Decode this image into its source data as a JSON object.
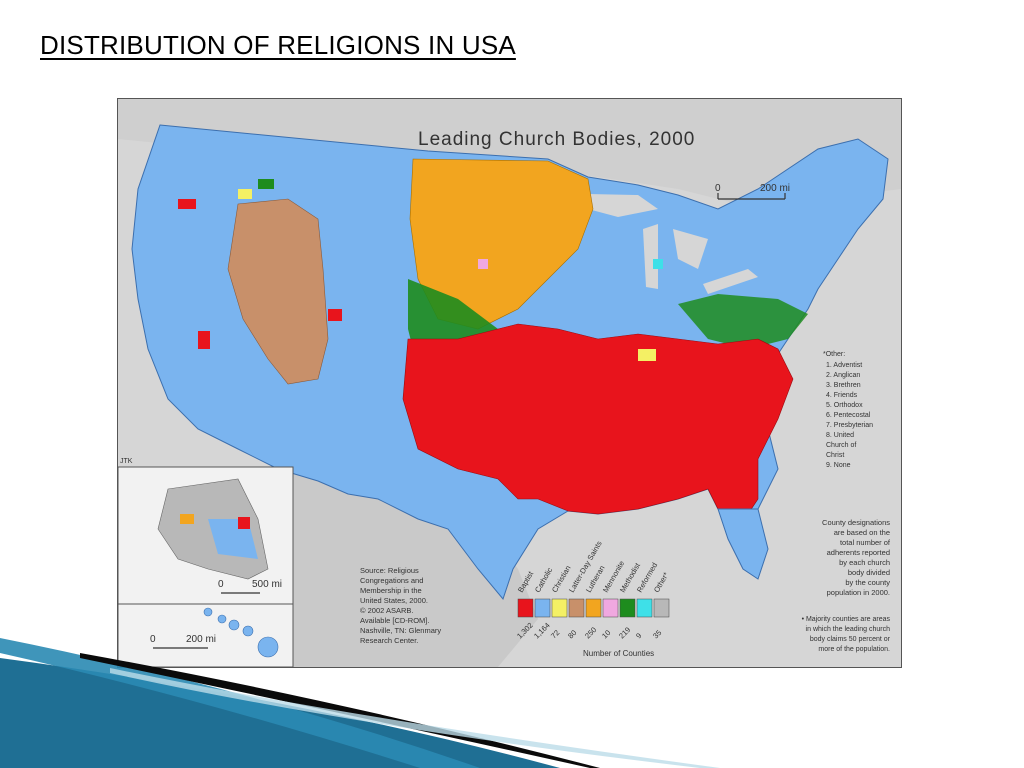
{
  "slide": {
    "title": "DISTRIBUTION OF RELIGIONS IN USA"
  },
  "map": {
    "title": "Leading Church Bodies, 2000",
    "scale_main": "200 mi",
    "scale_main_zero": "0",
    "scale_alaska": "500 mi",
    "scale_alaska_zero": "0",
    "scale_hawaii": "200 mi",
    "scale_hawaii_zero": "0",
    "author_mark": "JTK",
    "other_legend": {
      "heading": "*Other:",
      "items": [
        "1. Adventist",
        "2. Anglican",
        "3. Brethren",
        "4. Friends",
        "5. Orthodox",
        "6. Pentecostal",
        "7. Presbyterian",
        "8. United",
        "Church of",
        "Christ",
        "9. None"
      ]
    },
    "source_lines": [
      "Source: Religious",
      "Congregations and",
      "Membership in the",
      "United States, 2000.",
      "© 2002 ASARB.",
      "Available [CD-ROM].",
      "Nashville, TN: Glenmary",
      "Research Center."
    ],
    "county_note_lines": [
      "County designations",
      "are based on the",
      "total number of",
      "adherents reported",
      "by each church",
      "body divided",
      "by the county",
      "population in 2000."
    ],
    "majority_note_lines": [
      "• Majority counties are areas",
      "in which the leading church",
      "body claims 50 percent or",
      "more of the population."
    ],
    "legend": {
      "caption": "Number of Counties",
      "items": [
        {
          "name": "Baptist",
          "count": "1,302",
          "color": "#e8141c"
        },
        {
          "name": "Catholic",
          "count": "1,164",
          "color": "#7ab4ef"
        },
        {
          "name": "Christian",
          "count": "72",
          "color": "#f4f064"
        },
        {
          "name": "Latter-Day Saints",
          "count": "80",
          "color": "#c8906a"
        },
        {
          "name": "Lutheran",
          "count": "250",
          "color": "#f2a51f"
        },
        {
          "name": "Mennonite",
          "count": "10",
          "color": "#f0a8e0"
        },
        {
          "name": "Methodist",
          "count": "219",
          "color": "#1e8c1e"
        },
        {
          "name": "Reformed",
          "count": "9",
          "color": "#3ee0e8"
        },
        {
          "name": "Other*",
          "count": "35",
          "color": "#b8b8b8"
        }
      ]
    }
  }
}
